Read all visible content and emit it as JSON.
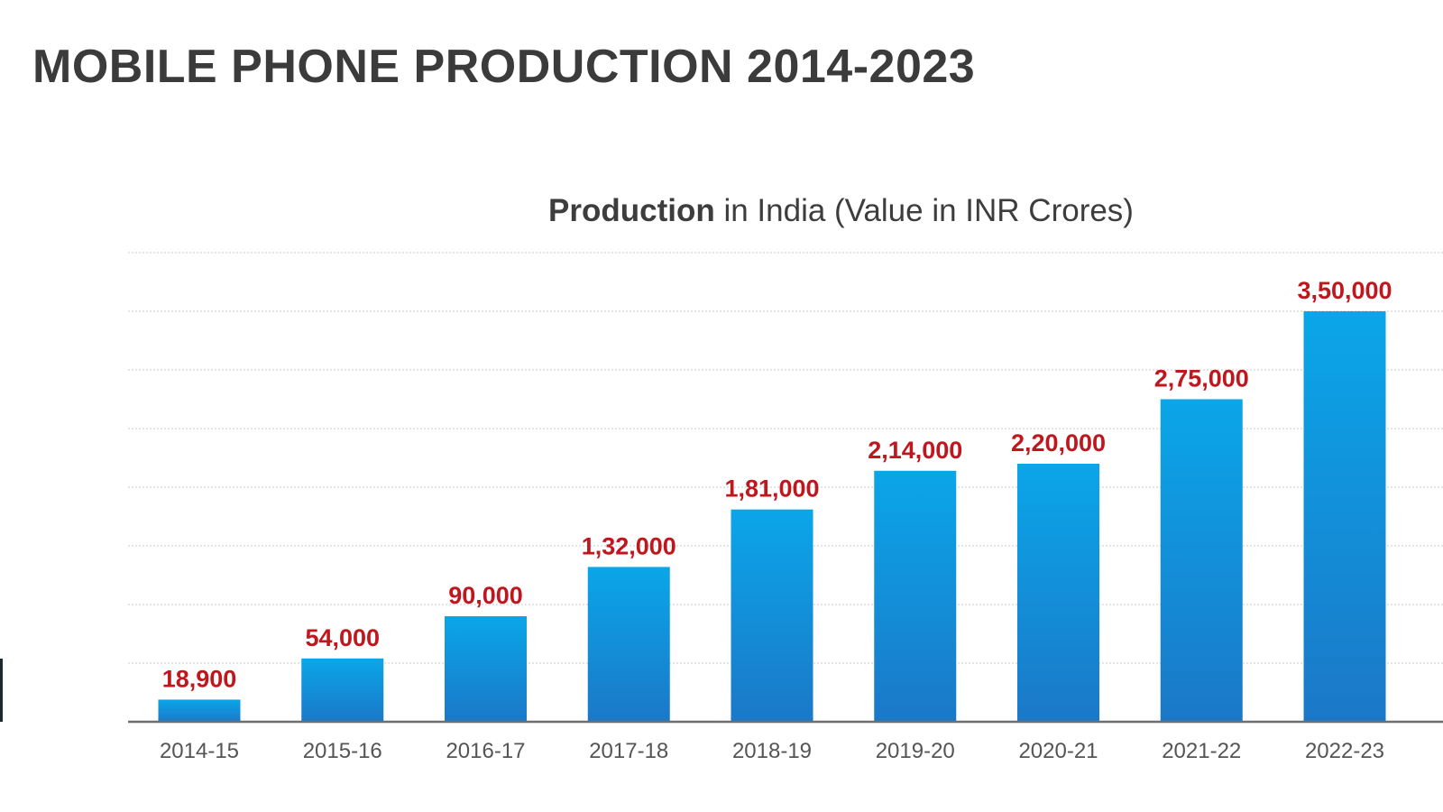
{
  "page": {
    "title": "MOBILE PHONE PRODUCTION 2014-2023"
  },
  "colors": {
    "bar_top": "#0aa6e8",
    "bar_bottom": "#1b78c8",
    "value_label": "#c0171e",
    "axis": "#6f6f6f",
    "grid": "#dcdcdc",
    "text": "#3b3b3b"
  },
  "chart_data": {
    "type": "bar",
    "title_bold": "Production",
    "title_rest": " in India (Value in INR Crores)",
    "xlabel": "",
    "ylabel": "",
    "ylim": [
      0,
      400000
    ],
    "grid": true,
    "categories": [
      "2014-15",
      "2015-16",
      "2016-17",
      "2017-18",
      "2018-19",
      "2019-20",
      "2020-21",
      "2021-22",
      "2022-23"
    ],
    "values": [
      18900,
      54000,
      90000,
      132000,
      181000,
      214000,
      220000,
      275000,
      350000
    ],
    "value_labels": [
      "18,900",
      "54,000",
      "90,000",
      "1,32,000",
      "1,81,000",
      "2,14,000",
      "2,20,000",
      "2,75,000",
      "3,50,000"
    ]
  }
}
